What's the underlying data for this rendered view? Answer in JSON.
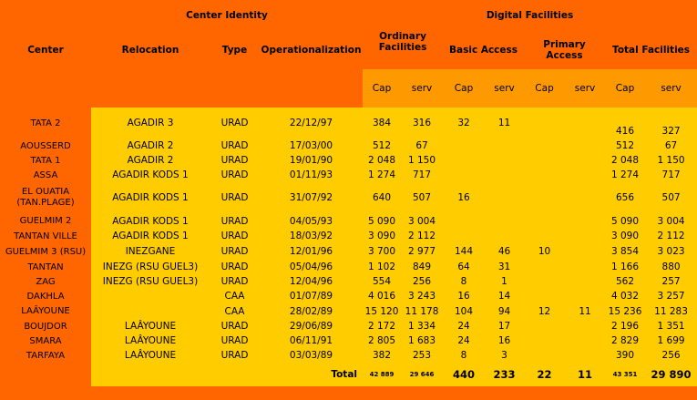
{
  "headers": {
    "center_identity": "Center Identity",
    "center": "Center",
    "relocation": "Relocation",
    "type": "Type",
    "operationalization": "Operationalization",
    "ordinary_facilities": "Ordinary Facilities",
    "digital_facilities": "Digital Facilities",
    "basic_access": "Basic Access",
    "primary_access": "Primary Access",
    "total_facilities": "Total Facilities",
    "cap": "Cap",
    "serv": "serv"
  },
  "rows": [
    {
      "center": "TATA 2",
      "relocation": "AGADIR 3",
      "type": "URAD",
      "date": "22/12/97",
      "ord_cap": "384",
      "ord_serv": "316",
      "ba_cap": "32",
      "ba_serv": "11",
      "pa_cap": "",
      "pa_serv": "",
      "tot_cap": "416",
      "tot_serv": "327"
    },
    {
      "center": "AOUSSERD",
      "relocation": "AGADIR 2",
      "type": "URAD",
      "date": "17/03/00",
      "ord_cap": "512",
      "ord_serv": "67",
      "ba_cap": "",
      "ba_serv": "",
      "pa_cap": "",
      "pa_serv": "",
      "tot_cap": "512",
      "tot_serv": "67"
    },
    {
      "center": "TATA 1",
      "relocation": "AGADIR 2",
      "type": "URAD",
      "date": "19/01/90",
      "ord_cap": "2 048",
      "ord_serv": "1 150",
      "ba_cap": "",
      "ba_serv": "",
      "pa_cap": "",
      "pa_serv": "",
      "tot_cap": "2 048",
      "tot_serv": "1 150"
    },
    {
      "center": "ASSA",
      "relocation": "AGADIR KODS 1",
      "type": "URAD",
      "date": "01/11/93",
      "ord_cap": "1 274",
      "ord_serv": "717",
      "ba_cap": "",
      "ba_serv": "",
      "pa_cap": "",
      "pa_serv": "",
      "tot_cap": "1 274",
      "tot_serv": "717"
    },
    {
      "center": "EL OUATIA (TAN.PLAGE)",
      "relocation": "AGADIR KODS 1",
      "type": "URAD",
      "date": "31/07/92",
      "ord_cap": "640",
      "ord_serv": "507",
      "ba_cap": "16",
      "ba_serv": "",
      "pa_cap": "",
      "pa_serv": "",
      "tot_cap": "656",
      "tot_serv": "507"
    },
    {
      "center": "GUELMIM 2",
      "relocation": "AGADIR KODS 1",
      "type": "URAD",
      "date": "04/05/93",
      "ord_cap": "5 090",
      "ord_serv": "3 004",
      "ba_cap": "",
      "ba_serv": "",
      "pa_cap": "",
      "pa_serv": "",
      "tot_cap": "5 090",
      "tot_serv": "3 004"
    },
    {
      "center": "TANTAN VILLE",
      "relocation": "AGADIR KODS 1",
      "type": "URAD",
      "date": "18/03/92",
      "ord_cap": "3 090",
      "ord_serv": "2 112",
      "ba_cap": "",
      "ba_serv": "",
      "pa_cap": "",
      "pa_serv": "",
      "tot_cap": "3 090",
      "tot_serv": "2 112"
    },
    {
      "center": "GUELMIM 3 (RSU)",
      "relocation": "INEZGANE",
      "type": "URAD",
      "date": "12/01/96",
      "ord_cap": "3 700",
      "ord_serv": "2 977",
      "ba_cap": "144",
      "ba_serv": "46",
      "pa_cap": "10",
      "pa_serv": "",
      "tot_cap": "3 854",
      "tot_serv": "3 023"
    },
    {
      "center": "TANTAN",
      "relocation": "INEZG (RSU GUEL3)",
      "type": "URAD",
      "date": "05/04/96",
      "ord_cap": "1 102",
      "ord_serv": "849",
      "ba_cap": "64",
      "ba_serv": "31",
      "pa_cap": "",
      "pa_serv": "",
      "tot_cap": "1 166",
      "tot_serv": "880"
    },
    {
      "center": "ZAG",
      "relocation": "INEZG (RSU GUEL3)",
      "type": "URAD",
      "date": "12/04/96",
      "ord_cap": "554",
      "ord_serv": "256",
      "ba_cap": "8",
      "ba_serv": "1",
      "pa_cap": "",
      "pa_serv": "",
      "tot_cap": "562",
      "tot_serv": "257"
    },
    {
      "center": "DAKHLA",
      "relocation": "",
      "type": "CAA",
      "date": "01/07/89",
      "ord_cap": "4 016",
      "ord_serv": "3 243",
      "ba_cap": "16",
      "ba_serv": "14",
      "pa_cap": "",
      "pa_serv": "",
      "tot_cap": "4 032",
      "tot_serv": "3 257"
    },
    {
      "center": "LAÂYOUNE",
      "relocation": "",
      "type": "CAA",
      "date": "28/02/89",
      "ord_cap": "15 120",
      "ord_serv": "11 178",
      "ba_cap": "104",
      "ba_serv": "94",
      "pa_cap": "12",
      "pa_serv": "11",
      "tot_cap": "15 236",
      "tot_serv": "11 283"
    },
    {
      "center": "BOUJDOR",
      "relocation": "LAÂYOUNE",
      "type": "URAD",
      "date": "29/06/89",
      "ord_cap": "2 172",
      "ord_serv": "1 334",
      "ba_cap": "24",
      "ba_serv": "17",
      "pa_cap": "",
      "pa_serv": "",
      "tot_cap": "2 196",
      "tot_serv": "1 351"
    },
    {
      "center": "SMARA",
      "relocation": "LAÂYOUNE",
      "type": "URAD",
      "date": "06/11/91",
      "ord_cap": "2 805",
      "ord_serv": "1 683",
      "ba_cap": "24",
      "ba_serv": "16",
      "pa_cap": "",
      "pa_serv": "",
      "tot_cap": "2 829",
      "tot_serv": "1 699"
    },
    {
      "center": "TARFAYA",
      "relocation": "LAÂYOUNE",
      "type": "URAD",
      "date": "03/03/89",
      "ord_cap": "382",
      "ord_serv": "253",
      "ba_cap": "8",
      "ba_serv": "3",
      "pa_cap": "",
      "pa_serv": "",
      "tot_cap": "390",
      "tot_serv": "256"
    }
  ],
  "total": {
    "label": "Total",
    "ord_cap": "42 889",
    "ord_serv": "29 646",
    "ba_cap": "440",
    "ba_serv": "233",
    "pa_cap": "22",
    "pa_serv": "11",
    "tot_cap": "43 351",
    "tot_serv": "29 890"
  },
  "colors": {
    "background": "#ff6600",
    "data_fill": "#ffcc00",
    "subheader_fill": "#ff9900"
  }
}
